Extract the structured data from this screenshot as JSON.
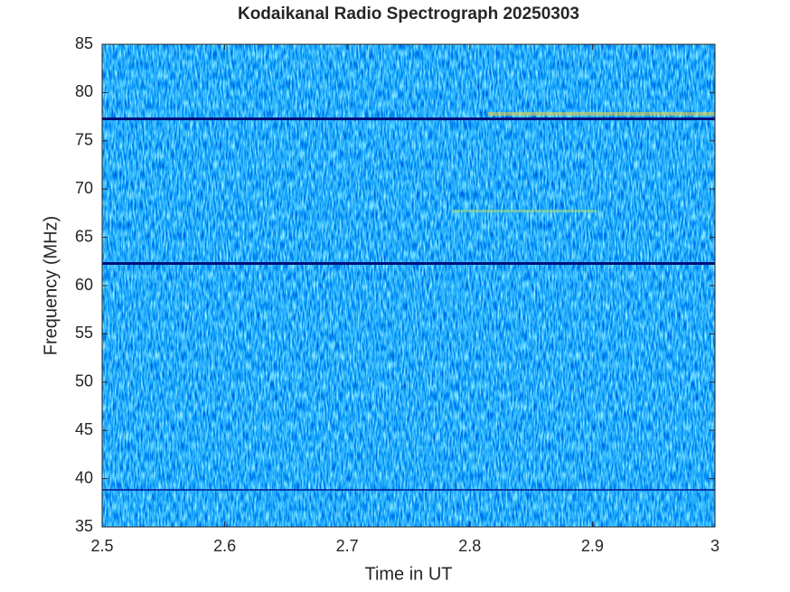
{
  "chart_data": {
    "type": "spectrogram",
    "title": "Kodaikanal Radio Spectrograph  20250303",
    "x_label": "Time in UT",
    "y_label": "Frequency (MHz)",
    "xlim": [
      2.5,
      3
    ],
    "xticks": [
      2.5,
      2.6,
      2.7,
      2.8,
      2.9,
      3
    ],
    "ylim": [
      35,
      85
    ],
    "yticks": [
      35,
      40,
      45,
      50,
      55,
      60,
      65,
      70,
      75,
      80,
      85
    ]
  }
}
